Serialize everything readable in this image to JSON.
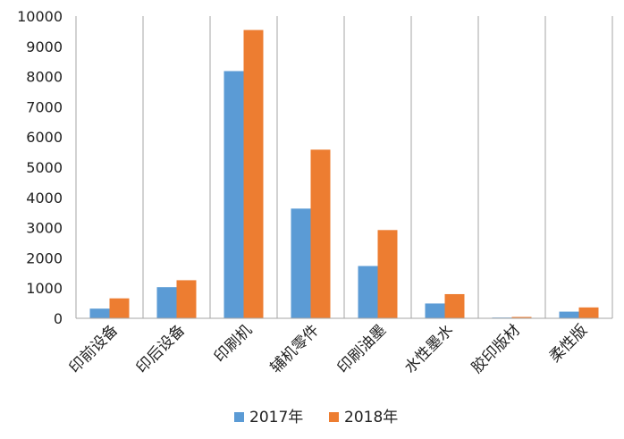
{
  "chart_data": {
    "type": "bar",
    "title": "",
    "xlabel": "",
    "ylabel": "",
    "ylim": [
      0,
      10000
    ],
    "y_ticks": [
      0,
      1000,
      2000,
      3000,
      4000,
      5000,
      6000,
      7000,
      8000,
      9000,
      10000
    ],
    "categories": [
      "印前设备",
      "印后设备",
      "印刷机",
      "辅机零件",
      "印刷油墨",
      "水性墨水",
      "胶印版材",
      "柔性版"
    ],
    "series": [
      {
        "name": "2017年",
        "color": "#5B9BD5",
        "values": [
          320,
          1030,
          8180,
          3630,
          1730,
          490,
          25,
          220
        ]
      },
      {
        "name": "2018年",
        "color": "#ED7D31",
        "values": [
          660,
          1260,
          9540,
          5580,
          2920,
          800,
          45,
          360
        ]
      }
    ],
    "grid": {
      "vertical": true,
      "horizontal": false
    },
    "legend_position": "bottom-center"
  }
}
